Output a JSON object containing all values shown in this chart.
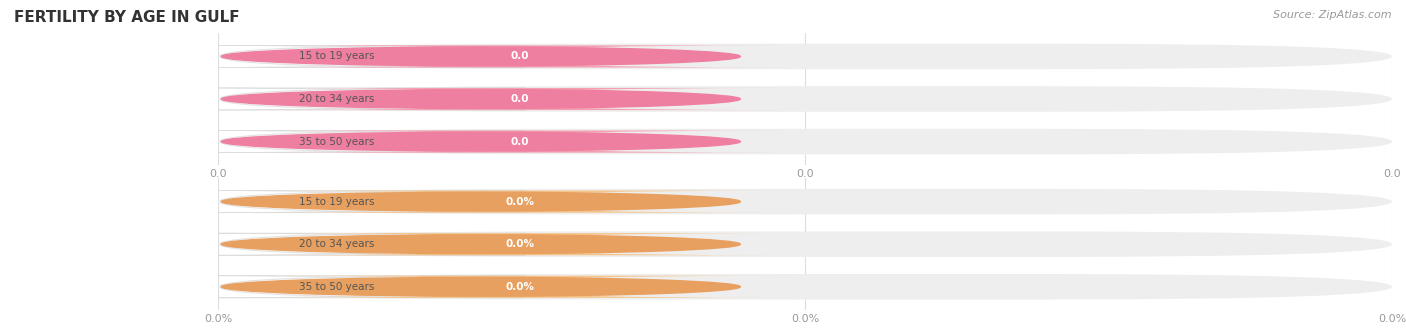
{
  "title": "FERTILITY BY AGE IN GULF",
  "source_text": "Source: ZipAtlas.com",
  "group1_labels": [
    "15 to 19 years",
    "20 to 34 years",
    "35 to 50 years"
  ],
  "group1_values": [
    0.0,
    0.0,
    0.0
  ],
  "group1_bar_color": "#f4a0b0",
  "group1_circle_color": "#ee7fa0",
  "group1_value_labels": [
    "0.0",
    "0.0",
    "0.0"
  ],
  "group1_axis_labels": [
    "0.0",
    "0.0",
    "0.0"
  ],
  "group2_labels": [
    "15 to 19 years",
    "20 to 34 years",
    "35 to 50 years"
  ],
  "group2_values": [
    0.0,
    0.0,
    0.0
  ],
  "group2_bar_color": "#f5c48a",
  "group2_circle_color": "#e8a060",
  "group2_value_labels": [
    "0.0%",
    "0.0%",
    "0.0%"
  ],
  "group2_axis_labels": [
    "0.0%",
    "0.0%",
    "0.0%"
  ],
  "bg_color": "#ffffff",
  "bar_bg_color": "#eeeeee",
  "label_color": "#555555",
  "title_color": "#333333",
  "axis_label_color": "#999999",
  "grid_color": "#dddddd",
  "source_color": "#999999"
}
